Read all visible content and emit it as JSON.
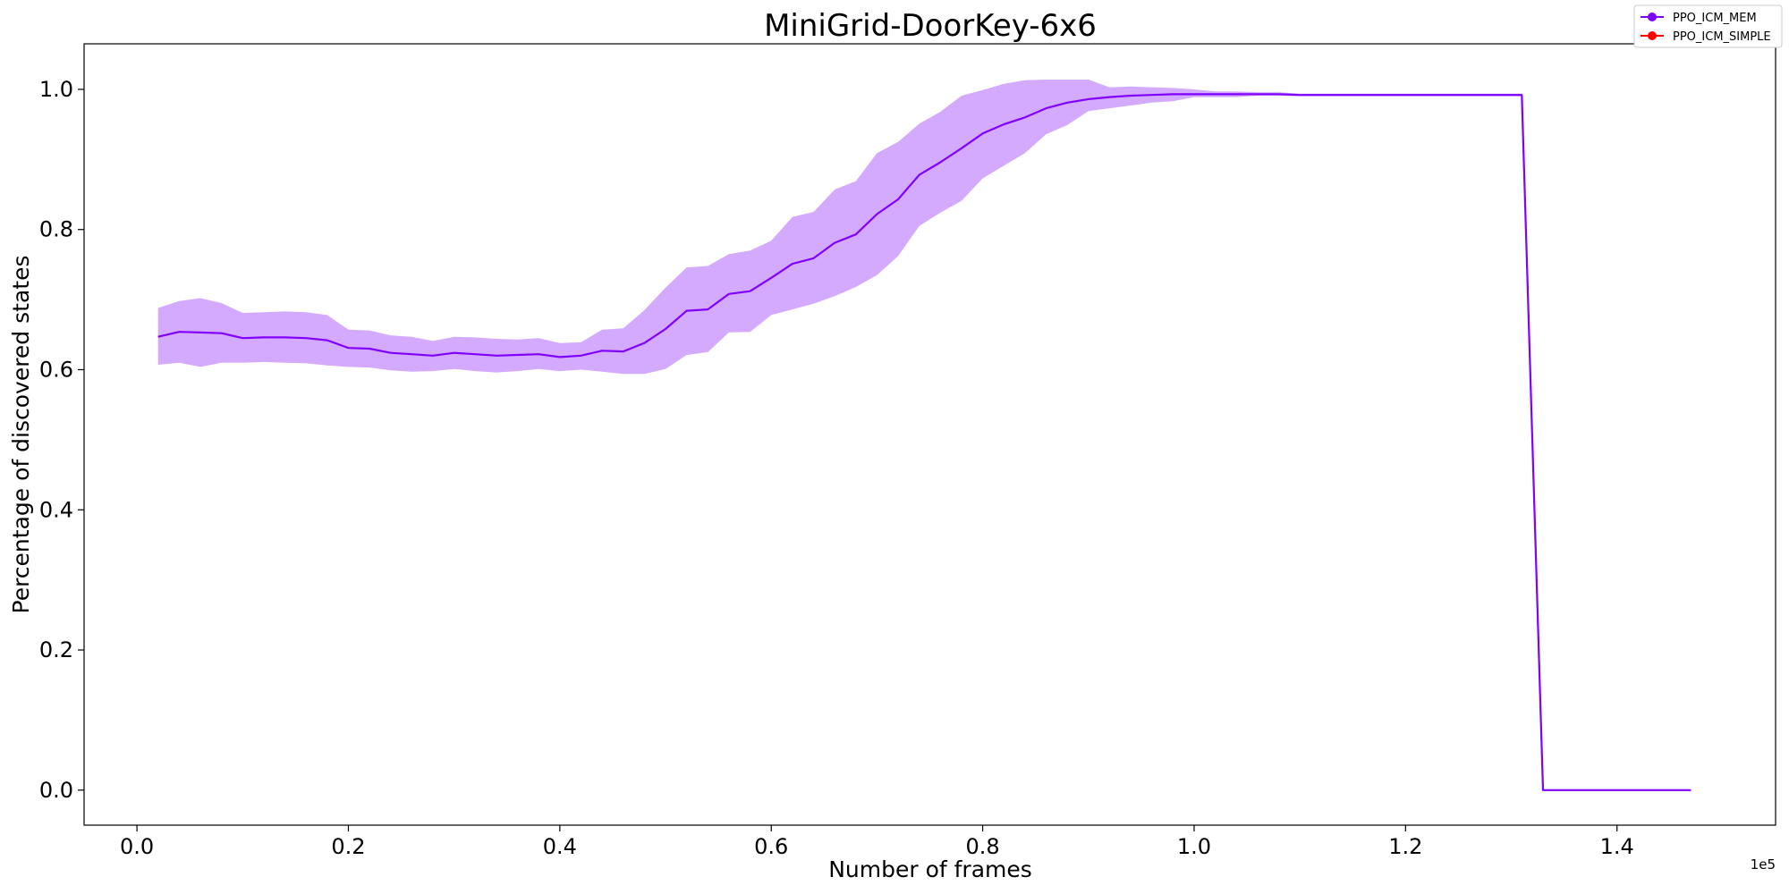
{
  "chart_data": {
    "type": "line",
    "title": "MiniGrid-DoorKey-6x6",
    "xlabel": "Number of frames",
    "ylabel": "Percentage of discovered states",
    "x_offset_label": "1e5",
    "xlim": [
      -0.05,
      1.55
    ],
    "ylim": [
      -0.05,
      1.065
    ],
    "grid": false,
    "legend_position": "top-right",
    "x_ticks": [
      0.0,
      0.2,
      0.4,
      0.6,
      0.8,
      1.0,
      1.2,
      1.4
    ],
    "x_tick_labels": [
      "0.0",
      "0.2",
      "0.4",
      "0.6",
      "0.8",
      "1.0",
      "1.2",
      "1.4"
    ],
    "y_ticks": [
      0.0,
      0.2,
      0.4,
      0.6,
      0.8,
      1.0
    ],
    "y_tick_labels": [
      "0.0",
      "0.2",
      "0.4",
      "0.6",
      "0.8",
      "1.0"
    ],
    "series": [
      {
        "name": "PPO_ICM_MEM",
        "color": "#8000ff",
        "band_color": "#d4aaff",
        "x": [
          0.02,
          0.04,
          0.06,
          0.08,
          0.1,
          0.12,
          0.14,
          0.16,
          0.18,
          0.2,
          0.22,
          0.24,
          0.26,
          0.28,
          0.3,
          0.32,
          0.34,
          0.36,
          0.38,
          0.4,
          0.42,
          0.44,
          0.46,
          0.48,
          0.5,
          0.52,
          0.54,
          0.56,
          0.58,
          0.6,
          0.62,
          0.64,
          0.66,
          0.68,
          0.7,
          0.72,
          0.74,
          0.76,
          0.78,
          0.8,
          0.82,
          0.84,
          0.86,
          0.88,
          0.9,
          0.92,
          0.94,
          0.96,
          0.98,
          1.0,
          1.02,
          1.04,
          1.06,
          1.08,
          1.1,
          1.12,
          1.14,
          1.16,
          1.18,
          1.2,
          1.22,
          1.24,
          1.26,
          1.28,
          1.31,
          1.33,
          1.35,
          1.37,
          1.39,
          1.41,
          1.43,
          1.45,
          1.47
        ],
        "y": [
          0.647,
          0.654,
          0.653,
          0.652,
          0.645,
          0.646,
          0.646,
          0.645,
          0.642,
          0.631,
          0.63,
          0.624,
          0.622,
          0.62,
          0.624,
          0.622,
          0.62,
          0.621,
          0.622,
          0.618,
          0.62,
          0.627,
          0.626,
          0.638,
          0.658,
          0.684,
          0.686,
          0.708,
          0.712,
          0.731,
          0.751,
          0.759,
          0.781,
          0.793,
          0.822,
          0.843,
          0.878,
          0.896,
          0.916,
          0.937,
          0.95,
          0.96,
          0.973,
          0.981,
          0.986,
          0.989,
          0.991,
          0.992,
          0.993,
          0.993,
          0.993,
          0.993,
          0.993,
          0.993,
          0.992,
          0.992,
          0.992,
          0.992,
          0.992,
          0.992,
          0.992,
          0.992,
          0.992,
          0.992,
          0.992,
          0.0,
          0.0,
          0.0,
          0.0,
          0.0,
          0.0,
          0.0,
          0.0
        ],
        "upper": [
          0.688,
          0.698,
          0.702,
          0.695,
          0.681,
          0.682,
          0.683,
          0.682,
          0.678,
          0.657,
          0.656,
          0.649,
          0.647,
          0.641,
          0.647,
          0.646,
          0.644,
          0.643,
          0.645,
          0.638,
          0.639,
          0.657,
          0.659,
          0.685,
          0.717,
          0.746,
          0.748,
          0.765,
          0.77,
          0.784,
          0.818,
          0.825,
          0.857,
          0.869,
          0.909,
          0.925,
          0.951,
          0.968,
          0.991,
          0.999,
          1.008,
          1.013,
          1.014,
          1.014,
          1.014,
          1.003,
          1.004,
          1.003,
          1.002,
          1.0,
          0.997,
          0.997,
          0.996,
          0.996,
          0.994,
          0.994,
          0.994,
          0.994,
          0.994,
          0.994,
          0.994,
          0.994,
          0.994,
          0.994,
          0.994,
          0.0,
          0.0,
          0.0,
          0.0,
          0.0,
          0.0,
          0.0,
          0.0
        ],
        "lower": [
          0.607,
          0.61,
          0.604,
          0.61,
          0.61,
          0.611,
          0.61,
          0.609,
          0.606,
          0.604,
          0.603,
          0.599,
          0.597,
          0.598,
          0.601,
          0.598,
          0.596,
          0.598,
          0.601,
          0.598,
          0.6,
          0.597,
          0.594,
          0.594,
          0.601,
          0.621,
          0.625,
          0.653,
          0.654,
          0.678,
          0.686,
          0.694,
          0.705,
          0.718,
          0.735,
          0.762,
          0.805,
          0.824,
          0.841,
          0.873,
          0.891,
          0.909,
          0.936,
          0.949,
          0.969,
          0.973,
          0.977,
          0.981,
          0.983,
          0.989,
          0.989,
          0.989,
          0.991,
          0.991,
          0.99,
          0.99,
          0.99,
          0.99,
          0.99,
          0.99,
          0.99,
          0.99,
          0.99,
          0.99,
          0.99,
          0.0,
          0.0,
          0.0,
          0.0,
          0.0,
          0.0,
          0.0,
          0.0
        ]
      },
      {
        "name": "PPO_ICM_SIMPLE",
        "color": "#ff0000",
        "x": [],
        "y": []
      }
    ]
  }
}
